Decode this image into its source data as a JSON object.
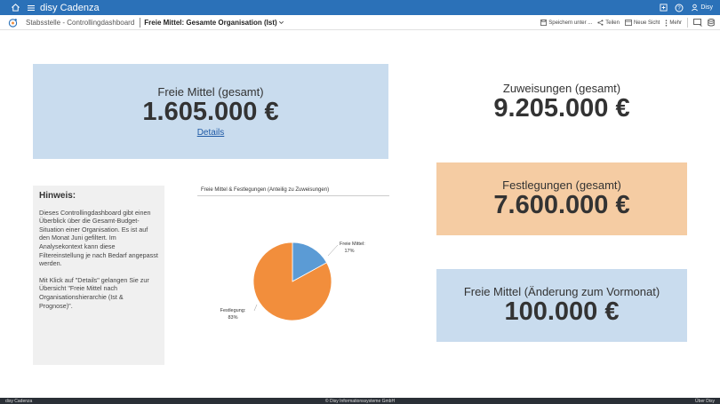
{
  "topbar": {
    "brand": "disy Cadenza",
    "user": "Disy",
    "colors": {
      "bar": "#2b71b8"
    }
  },
  "subbar": {
    "breadcrumb": "Stabsstelle - Controllingdashboard",
    "view_title": "Freie Mittel: Gesamte Organisation (Ist)",
    "actions": {
      "save": "Speichern unter ...",
      "share": "Teilen",
      "new_view": "Neue Sicht",
      "more": "Mehr"
    }
  },
  "cards": {
    "freie": {
      "label": "Freie Mittel (gesamt)",
      "value": "1.605.000 €",
      "link": "Details",
      "color": "#c9dcee"
    },
    "zuweisungen": {
      "label": "Zuweisungen (gesamt)",
      "value": "9.205.000 €"
    },
    "festlegungen": {
      "label": "Festlegungen (gesamt)",
      "value": "7.600.000 €",
      "color": "#f5cca3"
    },
    "aenderung": {
      "label": "Freie Mittel (Änderung zum Vormonat)",
      "value": "100.000 €",
      "color": "#c9dcee"
    }
  },
  "hint": {
    "title": "Hinweis:",
    "p1": "Dieses Controllingdashboard gibt einen Überblick über die Gesamt-Budget-Situation einer Organisation. Es ist auf den Monat Juni gefiltert. Im Analysekontext kann diese Filtereinstellung je nach Bedarf angepasst werden.",
    "p2": "Mit Klick auf \"Details\" gelangen Sie zur Übersicht \"Freie Mittel nach Organisationshierarchie (Ist & Prognose)\"."
  },
  "chart_data": {
    "type": "pie",
    "title": "Freie Mittel & Festlegungen (Anteilig zu Zuweisungen)",
    "slices": [
      {
        "name": "Freie Mittel:",
        "label": "17%",
        "value": 17,
        "color": "#5b9bd5"
      },
      {
        "name": "Festlegung:",
        "label": "83%",
        "value": 83,
        "color": "#f28e3c"
      }
    ]
  },
  "footer": {
    "left": "disy Cadenza",
    "center": "© Disy Informationssysteme GmbH",
    "right": "Über Disy"
  }
}
